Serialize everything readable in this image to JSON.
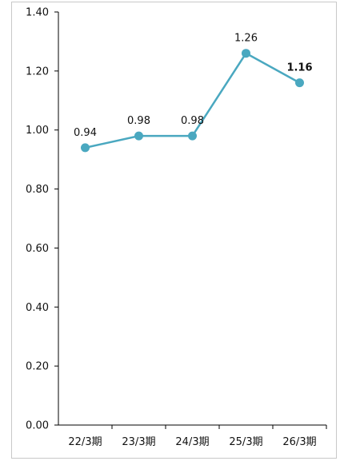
{
  "chart_data": {
    "type": "line",
    "title": "",
    "xlabel": "",
    "ylabel": "",
    "categories": [
      "22/3期",
      "23/3期",
      "24/3期",
      "25/3期",
      "26/3期"
    ],
    "series": [
      {
        "values": [
          0.94,
          0.98,
          0.98,
          1.26,
          1.16
        ]
      }
    ],
    "data_labels": [
      "0.94",
      "0.98",
      "0.98",
      "1.26",
      "1.16"
    ],
    "bold_label_index": 4,
    "ylim": [
      0,
      1.4
    ],
    "y_ticks": [
      "0.00",
      "0.20",
      "0.40",
      "0.60",
      "0.80",
      "1.00",
      "1.20",
      "1.40"
    ],
    "y_tick_values": [
      0,
      0.2,
      0.4,
      0.6,
      0.8,
      1.0,
      1.2,
      1.4
    ],
    "grid": false,
    "line_color": "#4aa8c0",
    "marker_color": "#4aa8c0"
  }
}
